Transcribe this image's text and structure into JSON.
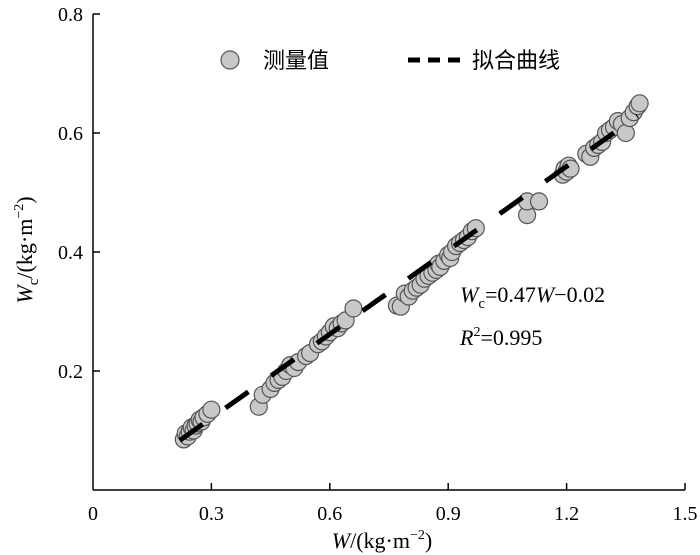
{
  "chart_data": {
    "type": "scatter",
    "xlabel": {
      "main": "W",
      "unit": "/(kg·m",
      "sup": "−2",
      "close": ")"
    },
    "ylabel": {
      "main": "W",
      "sub": "c",
      "unit": "/(kg·m",
      "sup": "−2",
      "close": ")"
    },
    "xlim": [
      0,
      1.5
    ],
    "ylim": [
      0,
      0.8
    ],
    "x_ticks": [
      0,
      0.3,
      0.6,
      0.9,
      1.2,
      1.5
    ],
    "x_tick_labels": [
      "0",
      "0.3",
      "0.6",
      "0.9",
      "1.2",
      "1.5"
    ],
    "y_ticks": [
      0.2,
      0.4,
      0.6,
      0.8
    ],
    "y_tick_labels": [
      "0.2",
      "0.4",
      "0.6",
      "0.8"
    ],
    "grid": false,
    "legend": {
      "placement": "top",
      "entries": [
        {
          "name": "测量值",
          "marker": "circle"
        },
        {
          "name": "拟合曲线",
          "marker": "dashed-line"
        }
      ]
    },
    "equation": {
      "lhs_main": "W",
      "lhs_sub": "c",
      "rhs_a": "=0.47",
      "rhs_var": "W",
      "rhs_b": "−0.02"
    },
    "r_squared": {
      "label": "R",
      "sup": "2",
      "value": "=0.995"
    },
    "fit": {
      "slope": 0.47,
      "intercept": -0.02,
      "x_range": [
        0.22,
        1.38
      ]
    },
    "series": [
      {
        "name": "测量值",
        "points": [
          [
            0.23,
            0.085
          ],
          [
            0.235,
            0.095
          ],
          [
            0.24,
            0.09
          ],
          [
            0.245,
            0.098
          ],
          [
            0.25,
            0.105
          ],
          [
            0.255,
            0.1
          ],
          [
            0.26,
            0.108
          ],
          [
            0.265,
            0.112
          ],
          [
            0.27,
            0.118
          ],
          [
            0.275,
            0.115
          ],
          [
            0.28,
            0.122
          ],
          [
            0.29,
            0.128
          ],
          [
            0.3,
            0.135
          ],
          [
            0.42,
            0.14
          ],
          [
            0.43,
            0.16
          ],
          [
            0.45,
            0.17
          ],
          [
            0.46,
            0.18
          ],
          [
            0.47,
            0.185
          ],
          [
            0.48,
            0.19
          ],
          [
            0.49,
            0.2
          ],
          [
            0.5,
            0.21
          ],
          [
            0.51,
            0.205
          ],
          [
            0.52,
            0.215
          ],
          [
            0.54,
            0.225
          ],
          [
            0.55,
            0.23
          ],
          [
            0.57,
            0.245
          ],
          [
            0.58,
            0.25
          ],
          [
            0.59,
            0.258
          ],
          [
            0.6,
            0.265
          ],
          [
            0.61,
            0.275
          ],
          [
            0.62,
            0.272
          ],
          [
            0.63,
            0.28
          ],
          [
            0.64,
            0.285
          ],
          [
            0.66,
            0.305
          ],
          [
            0.77,
            0.31
          ],
          [
            0.78,
            0.308
          ],
          [
            0.79,
            0.33
          ],
          [
            0.8,
            0.325
          ],
          [
            0.81,
            0.335
          ],
          [
            0.82,
            0.34
          ],
          [
            0.83,
            0.345
          ],
          [
            0.84,
            0.355
          ],
          [
            0.85,
            0.36
          ],
          [
            0.86,
            0.365
          ],
          [
            0.87,
            0.37
          ],
          [
            0.875,
            0.38
          ],
          [
            0.88,
            0.375
          ],
          [
            0.89,
            0.385
          ],
          [
            0.9,
            0.395
          ],
          [
            0.905,
            0.39
          ],
          [
            0.91,
            0.4
          ],
          [
            0.92,
            0.41
          ],
          [
            0.93,
            0.415
          ],
          [
            0.94,
            0.42
          ],
          [
            0.95,
            0.425
          ],
          [
            0.96,
            0.435
          ],
          [
            0.97,
            0.44
          ],
          [
            1.1,
            0.462
          ],
          [
            1.1,
            0.485
          ],
          [
            1.13,
            0.485
          ],
          [
            1.19,
            0.53
          ],
          [
            1.195,
            0.54
          ],
          [
            1.2,
            0.535
          ],
          [
            1.205,
            0.545
          ],
          [
            1.21,
            0.54
          ],
          [
            1.25,
            0.565
          ],
          [
            1.26,
            0.56
          ],
          [
            1.27,
            0.575
          ],
          [
            1.28,
            0.58
          ],
          [
            1.29,
            0.585
          ],
          [
            1.3,
            0.6
          ],
          [
            1.31,
            0.605
          ],
          [
            1.32,
            0.61
          ],
          [
            1.33,
            0.62
          ],
          [
            1.34,
            0.615
          ],
          [
            1.35,
            0.6
          ],
          [
            1.36,
            0.625
          ],
          [
            1.37,
            0.635
          ],
          [
            1.38,
            0.645
          ],
          [
            1.385,
            0.65
          ]
        ]
      }
    ]
  }
}
